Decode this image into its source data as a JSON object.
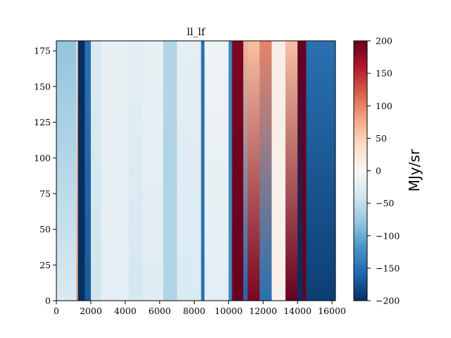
{
  "chart_data": {
    "type": "heatmap",
    "title": "ll_lf",
    "xlabel": "",
    "ylabel": "",
    "xlim": [
      0,
      16200
    ],
    "ylim": [
      0,
      182
    ],
    "x_ticks": [
      0,
      2000,
      4000,
      6000,
      8000,
      10000,
      12000,
      14000,
      16000
    ],
    "x_tick_labels": [
      "0",
      "2000",
      "4000",
      "6000",
      "8000",
      "10000",
      "12000",
      "14000",
      "16000"
    ],
    "y_ticks": [
      0,
      25,
      50,
      75,
      100,
      125,
      150,
      175
    ],
    "y_tick_labels": [
      "0",
      "25",
      "50",
      "75",
      "100",
      "125",
      "150",
      "175"
    ],
    "colormap": "RdBu_r",
    "colorbar": {
      "label": "MJy/sr",
      "vmin": -200,
      "vmax": 200,
      "ticks": [
        -200,
        -150,
        -100,
        -50,
        0,
        50,
        100,
        150,
        200
      ],
      "tick_labels": [
        "−200",
        "−150",
        "−100",
        "−50",
        "0",
        "50",
        "100",
        "150",
        "200"
      ]
    },
    "columns": [
      {
        "x0": 0,
        "x1": 1150,
        "bottom": -30,
        "top": -80
      },
      {
        "x0": 1150,
        "x1": 1250,
        "bottom": 80,
        "top": 40
      },
      {
        "x0": 1250,
        "x1": 1650,
        "bottom": -200,
        "top": -200
      },
      {
        "x0": 1650,
        "x1": 2000,
        "bottom": -170,
        "top": -150
      },
      {
        "x0": 2000,
        "x1": 2600,
        "bottom": -40,
        "top": -30
      },
      {
        "x0": 2600,
        "x1": 4200,
        "bottom": -20,
        "top": -15
      },
      {
        "x0": 4200,
        "x1": 5000,
        "bottom": -35,
        "top": -20
      },
      {
        "x0": 5000,
        "x1": 6200,
        "bottom": -25,
        "top": -15
      },
      {
        "x0": 6200,
        "x1": 7000,
        "bottom": -60,
        "top": -60
      },
      {
        "x0": 7000,
        "x1": 8400,
        "bottom": -30,
        "top": -20
      },
      {
        "x0": 8400,
        "x1": 8600,
        "bottom": -150,
        "top": -150
      },
      {
        "x0": 8600,
        "x1": 10000,
        "bottom": -20,
        "top": -10
      },
      {
        "x0": 10000,
        "x1": 10200,
        "bottom": -130,
        "top": -130
      },
      {
        "x0": 10200,
        "x1": 10850,
        "bottom": 200,
        "top": 190
      },
      {
        "x0": 10850,
        "x1": 11100,
        "bottom": -160,
        "top": 70
      },
      {
        "x0": 11100,
        "x1": 11800,
        "bottom": 190,
        "top": 60
      },
      {
        "x0": 11800,
        "x1": 12500,
        "bottom": -150,
        "top": 100
      },
      {
        "x0": 12500,
        "x1": 13300,
        "bottom": 10,
        "top": 15
      },
      {
        "x0": 13300,
        "x1": 14000,
        "bottom": 200,
        "top": 60
      },
      {
        "x0": 14000,
        "x1": 14300,
        "bottom": -200,
        "top": 200
      },
      {
        "x0": 14300,
        "x1": 14500,
        "bottom": 200,
        "top": 200
      },
      {
        "x0": 14500,
        "x1": 16200,
        "bottom": -190,
        "top": -150
      }
    ]
  }
}
